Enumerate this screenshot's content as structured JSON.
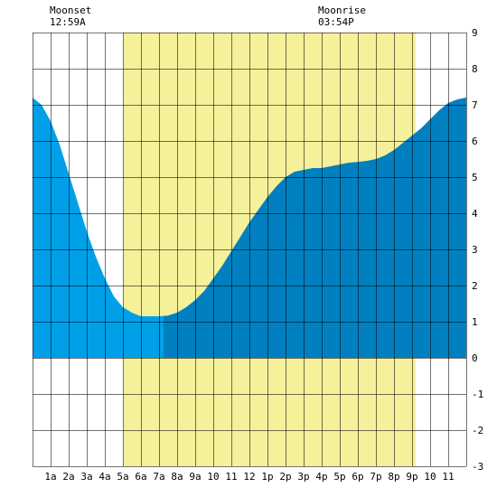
{
  "moon": {
    "moonset_label": "Moonset",
    "moonset_time": "12:59A",
    "moonrise_label": "Moonrise",
    "moonrise_time": "03:54P"
  },
  "chart_data": {
    "type": "area",
    "title": "",
    "xlabel": "",
    "ylabel": "",
    "xlim": [
      0,
      24
    ],
    "ylim": [
      -3,
      9
    ],
    "grid": true,
    "x_tick_labels": [
      {
        "x": 1,
        "label": "1a"
      },
      {
        "x": 2,
        "label": "2a"
      },
      {
        "x": 3,
        "label": "3a"
      },
      {
        "x": 4,
        "label": "4a"
      },
      {
        "x": 5,
        "label": "5a"
      },
      {
        "x": 6,
        "label": "6a"
      },
      {
        "x": 7,
        "label": "7a"
      },
      {
        "x": 8,
        "label": "8a"
      },
      {
        "x": 9,
        "label": "9a"
      },
      {
        "x": 10,
        "label": "10"
      },
      {
        "x": 11,
        "label": "11"
      },
      {
        "x": 12,
        "label": "12"
      },
      {
        "x": 13,
        "label": "1p"
      },
      {
        "x": 14,
        "label": "2p"
      },
      {
        "x": 15,
        "label": "3p"
      },
      {
        "x": 16,
        "label": "4p"
      },
      {
        "x": 17,
        "label": "5p"
      },
      {
        "x": 18,
        "label": "6p"
      },
      {
        "x": 19,
        "label": "7p"
      },
      {
        "x": 20,
        "label": "8p"
      },
      {
        "x": 21,
        "label": "9p"
      },
      {
        "x": 22,
        "label": "10"
      },
      {
        "x": 23,
        "label": "11"
      }
    ],
    "y_tick_labels": [
      "-3",
      "-2",
      "-1",
      "0",
      "1",
      "2",
      "3",
      "4",
      "5",
      "6",
      "7",
      "8",
      "9"
    ],
    "daylight": {
      "start": 5.05,
      "end": 21.2
    },
    "moonset_hour": 0.98,
    "moonrise_hour": 15.9,
    "low_tide_split_hour": 7.25,
    "colors": {
      "background": "#ffffff",
      "daylight": "#f5f09a",
      "tide_before_low": "#00a0e8",
      "tide_after_low": "#0080c0",
      "grid": "#000000"
    },
    "series": [
      {
        "values": [
          [
            0,
            7.2
          ],
          [
            0.5,
            7.0
          ],
          [
            1,
            6.55
          ],
          [
            1.5,
            5.9
          ],
          [
            2,
            5.1
          ],
          [
            2.5,
            4.3
          ],
          [
            3,
            3.5
          ],
          [
            3.5,
            2.8
          ],
          [
            4,
            2.2
          ],
          [
            4.5,
            1.7
          ],
          [
            5,
            1.4
          ],
          [
            5.5,
            1.25
          ],
          [
            6,
            1.15
          ],
          [
            6.5,
            1.15
          ],
          [
            7,
            1.15
          ],
          [
            7.5,
            1.17
          ],
          [
            8,
            1.25
          ],
          [
            8.5,
            1.4
          ],
          [
            9,
            1.6
          ],
          [
            9.5,
            1.85
          ],
          [
            10,
            2.2
          ],
          [
            10.5,
            2.55
          ],
          [
            11,
            2.95
          ],
          [
            11.5,
            3.35
          ],
          [
            12,
            3.75
          ],
          [
            12.5,
            4.1
          ],
          [
            13,
            4.45
          ],
          [
            13.5,
            4.75
          ],
          [
            14,
            5.0
          ],
          [
            14.5,
            5.15
          ],
          [
            15,
            5.2
          ],
          [
            15.5,
            5.25
          ],
          [
            16,
            5.25
          ],
          [
            16.5,
            5.3
          ],
          [
            17,
            5.35
          ],
          [
            17.5,
            5.4
          ],
          [
            18,
            5.42
          ],
          [
            18.5,
            5.45
          ],
          [
            19,
            5.5
          ],
          [
            19.5,
            5.6
          ],
          [
            20,
            5.75
          ],
          [
            20.5,
            5.95
          ],
          [
            21,
            6.15
          ],
          [
            21.5,
            6.35
          ],
          [
            22,
            6.6
          ],
          [
            22.5,
            6.85
          ],
          [
            23,
            7.05
          ],
          [
            23.5,
            7.15
          ],
          [
            24,
            7.2
          ]
        ]
      }
    ]
  }
}
